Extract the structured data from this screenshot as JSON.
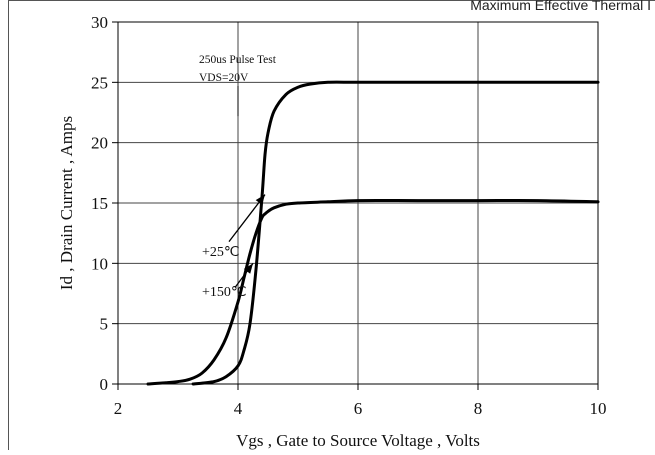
{
  "header_text": "Maximum Effective Thermal I",
  "chart_data": {
    "type": "line",
    "title": "",
    "xlabel": "Vgs , Gate to Source Voltage , Volts",
    "ylabel": "Id , Drain Current , Amps",
    "xlim": [
      2,
      10
    ],
    "ylim": [
      0,
      30
    ],
    "x_ticks": [
      2,
      4,
      6,
      8,
      10
    ],
    "y_ticks": [
      0,
      5,
      10,
      15,
      20,
      25,
      30
    ],
    "grid": true,
    "series": [
      {
        "name": "+25℃",
        "x": [
          2.5,
          2.8,
          3.0,
          3.2,
          3.4,
          3.6,
          3.8,
          4.0,
          4.1,
          4.2,
          4.3,
          4.4,
          4.45,
          4.5,
          4.6,
          4.8,
          5.0,
          5.5,
          6.0,
          7.0,
          8.0,
          9.0,
          10.0
        ],
        "y": [
          0,
          0.1,
          0.2,
          0.4,
          0.9,
          2.0,
          3.8,
          6.8,
          8.8,
          10.8,
          12.5,
          13.8,
          14.1,
          14.3,
          14.6,
          14.9,
          15.0,
          15.1,
          15.2,
          15.2,
          15.2,
          15.2,
          15.1
        ]
      },
      {
        "name": "+150℃",
        "x": [
          3.25,
          3.6,
          3.8,
          4.0,
          4.1,
          4.2,
          4.3,
          4.4,
          4.45,
          4.5,
          4.6,
          4.8,
          5.0,
          5.2,
          5.5,
          6.0,
          7.0,
          8.0,
          9.0,
          10.0
        ],
        "y": [
          0,
          0.2,
          0.6,
          1.5,
          2.8,
          5.0,
          9.5,
          15.5,
          19.0,
          20.8,
          22.6,
          24.0,
          24.6,
          24.85,
          25.0,
          25.0,
          25.0,
          25.0,
          25.0,
          25.0
        ]
      }
    ],
    "annotations": [
      {
        "text": "250us Pulse Test",
        "x": 3.35,
        "y": 26.6
      },
      {
        "text": "VDS=20V",
        "x": 3.35,
        "y": 25.1
      }
    ]
  }
}
